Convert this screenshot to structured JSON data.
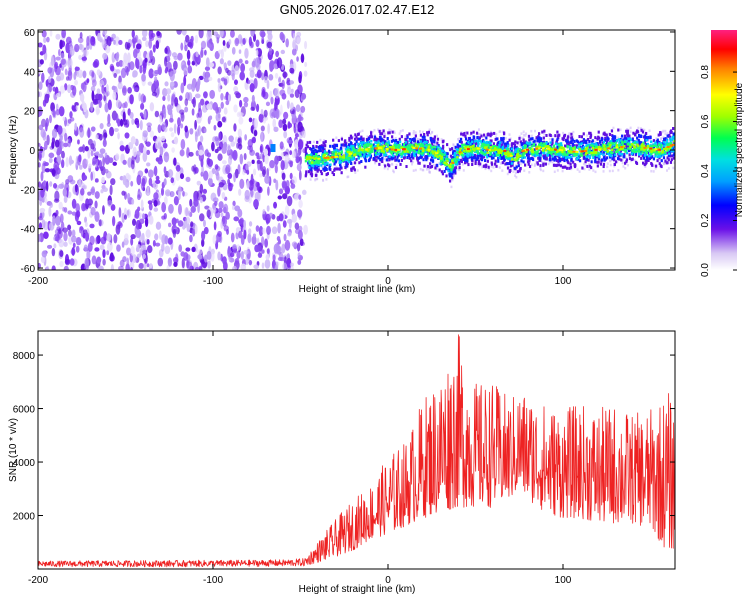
{
  "chart_data": [
    {
      "type": "heatmap",
      "title": "GN05.2026.017.02.47.E12",
      "xlabel": "Height of straight line (km)",
      "ylabel": "Frequency (Hz)",
      "xlim": [
        -200,
        164
      ],
      "ylim": [
        -61,
        61
      ],
      "x_ticks": [
        -200,
        -100,
        0,
        100
      ],
      "y_ticks": [
        -60,
        -40,
        -20,
        0,
        20,
        40,
        60
      ],
      "colorbar": {
        "label": "Normalized spectral amplitude",
        "range": [
          0,
          0.97
        ],
        "ticks": [
          0.0,
          0.2,
          0.4,
          0.6,
          0.8
        ]
      },
      "noise_region_x": [
        -200,
        -47
      ],
      "signal_band_center": [
        [
          -66,
          0
        ],
        [
          -45,
          -5
        ],
        [
          -35,
          -4
        ],
        [
          -25,
          -3
        ],
        [
          -15,
          0
        ],
        [
          -5,
          1
        ],
        [
          5,
          0
        ],
        [
          15,
          1
        ],
        [
          25,
          0
        ],
        [
          30,
          -3
        ],
        [
          36,
          -8
        ],
        [
          42,
          0
        ],
        [
          50,
          1
        ],
        [
          58,
          0
        ],
        [
          66,
          0
        ],
        [
          72,
          -4
        ],
        [
          78,
          0
        ],
        [
          88,
          1
        ],
        [
          98,
          0
        ],
        [
          108,
          -1
        ],
        [
          118,
          0
        ],
        [
          128,
          1
        ],
        [
          138,
          2
        ],
        [
          148,
          1
        ],
        [
          156,
          0
        ],
        [
          164,
          3
        ]
      ]
    },
    {
      "type": "line",
      "title": "",
      "xlabel": "Height of straight line (km)",
      "ylabel": "SNR (10 * v/v)",
      "xlim": [
        -200,
        164
      ],
      "ylim": [
        0,
        8900
      ],
      "x_ticks": [
        -200,
        -100,
        0,
        100
      ],
      "y_ticks": [
        2000,
        4000,
        6000,
        8000
      ],
      "color": "#ee2222",
      "envelope": [
        [
          -200,
          80,
          300
        ],
        [
          -150,
          80,
          320
        ],
        [
          -100,
          80,
          330
        ],
        [
          -60,
          100,
          350
        ],
        [
          -48,
          100,
          400
        ],
        [
          -32,
          400,
          1700
        ],
        [
          -20,
          700,
          2600
        ],
        [
          -10,
          1100,
          3200
        ],
        [
          0,
          1300,
          4200
        ],
        [
          10,
          1600,
          4800
        ],
        [
          20,
          1900,
          6400
        ],
        [
          30,
          2100,
          7400
        ],
        [
          40,
          2300,
          8900
        ],
        [
          50,
          2300,
          7000
        ],
        [
          60,
          2300,
          7000
        ],
        [
          70,
          2600,
          6400
        ],
        [
          75,
          2900,
          6800
        ],
        [
          80,
          2600,
          6600
        ],
        [
          90,
          2100,
          6200
        ],
        [
          100,
          1900,
          6000
        ],
        [
          110,
          1900,
          6200
        ],
        [
          120,
          1700,
          6000
        ],
        [
          130,
          1700,
          6200
        ],
        [
          140,
          1700,
          5800
        ],
        [
          150,
          1500,
          6000
        ],
        [
          160,
          600,
          6700
        ],
        [
          164,
          800,
          6200
        ]
      ]
    }
  ]
}
